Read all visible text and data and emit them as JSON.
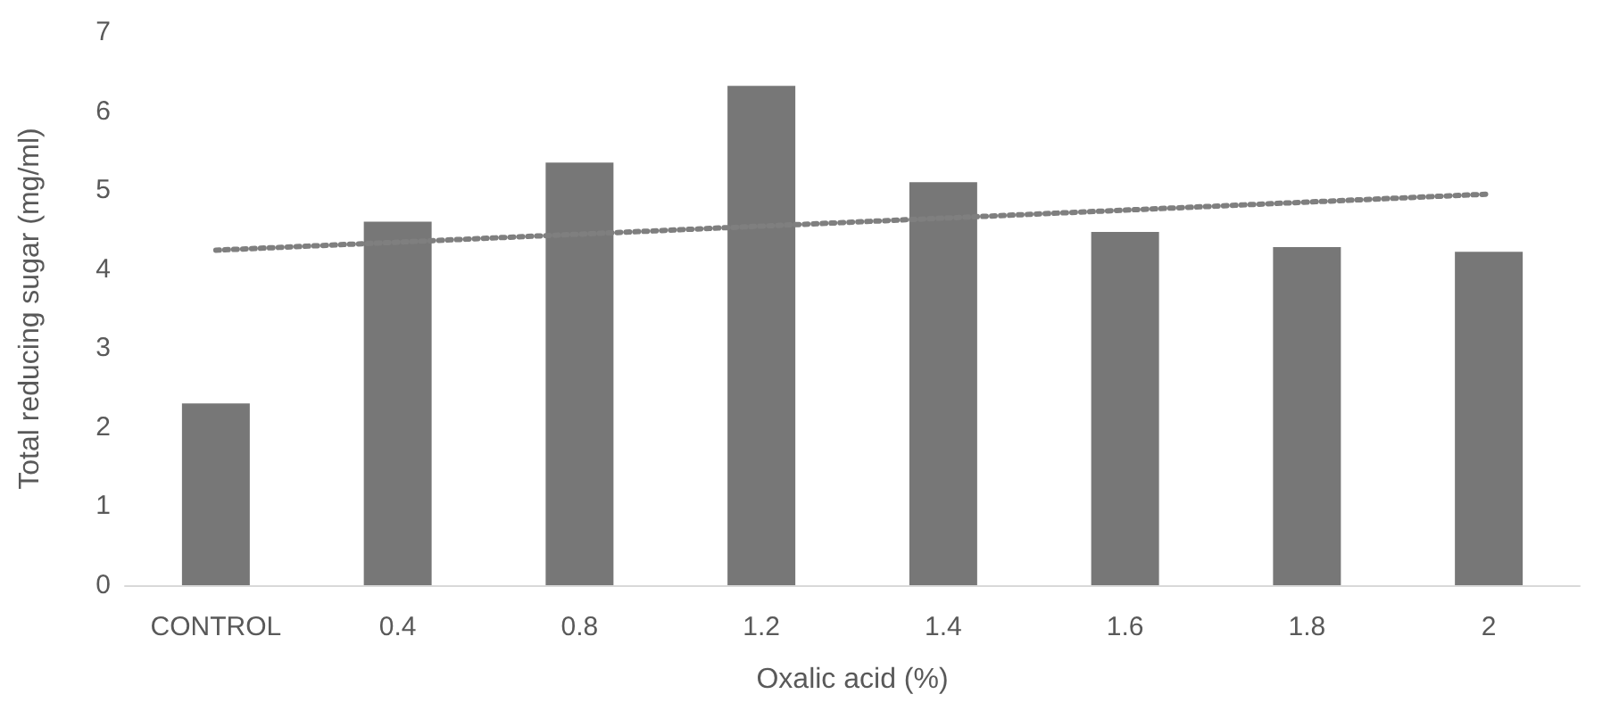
{
  "chart_data": {
    "type": "bar",
    "xlabel": "Oxalic acid (%)",
    "ylabel": "Total reducing sugar (mg/ml)",
    "categories": [
      "CONTROL",
      "0.4",
      "0.8",
      "1.2",
      "1.4",
      "1.6",
      "1.8",
      "2"
    ],
    "series": [
      {
        "color": "#777777",
        "values": [
          2.3,
          4.6,
          5.35,
          6.32,
          5.1,
          4.47,
          4.28,
          4.22
        ]
      },
      {
        "type": "line",
        "color": "#7f7f7f",
        "line_style": "dotted",
        "x": [
          "CONTROL",
          "2"
        ],
        "values": [
          4.24,
          4.95
        ]
      }
    ],
    "ylim": [
      0,
      7
    ],
    "yticks": [
      0,
      1,
      2,
      3,
      4,
      5,
      6,
      7
    ],
    "grid": false
  }
}
